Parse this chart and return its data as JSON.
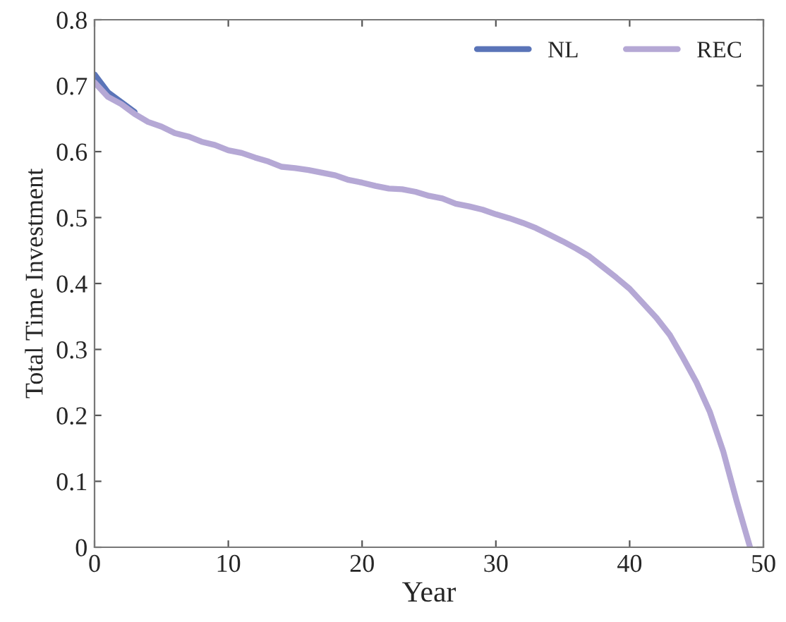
{
  "chart_data": {
    "type": "line",
    "xlabel": "Year",
    "ylabel": "Total Time Investment",
    "x": [
      0,
      1,
      2,
      3,
      4,
      5,
      6,
      7,
      8,
      9,
      10,
      11,
      12,
      13,
      14,
      15,
      16,
      17,
      18,
      19,
      20,
      21,
      22,
      23,
      24,
      25,
      26,
      27,
      28,
      29,
      30,
      31,
      32,
      33,
      34,
      35,
      36,
      37,
      38,
      39,
      40,
      41,
      42,
      43,
      44,
      45,
      46,
      47,
      48,
      49
    ],
    "series": [
      {
        "name": "NL",
        "color": "#5a74b8",
        "values": [
          0.717,
          0.69,
          0.675,
          0.66,
          null,
          null,
          null,
          null,
          null,
          null,
          null,
          null,
          null,
          null,
          null,
          null,
          null,
          null,
          null,
          null,
          null,
          null,
          null,
          null,
          null,
          null,
          null,
          null,
          null,
          null,
          null,
          null,
          null,
          null,
          null,
          null,
          null,
          null,
          null,
          null,
          null,
          null,
          null,
          null,
          null,
          null,
          null,
          null,
          null,
          null
        ]
      },
      {
        "name": "REC",
        "color": "#b5a8d5",
        "values": [
          0.705,
          0.683,
          0.672,
          0.657,
          0.645,
          0.638,
          0.628,
          0.623,
          0.615,
          0.61,
          0.602,
          0.598,
          0.591,
          0.585,
          0.577,
          0.575,
          0.572,
          0.568,
          0.564,
          0.557,
          0.553,
          0.548,
          0.544,
          0.543,
          0.539,
          0.533,
          0.529,
          0.521,
          0.517,
          0.512,
          0.505,
          0.499,
          0.492,
          0.484,
          0.474,
          0.464,
          0.453,
          0.441,
          0.425,
          0.409,
          0.392,
          0.37,
          0.348,
          0.322,
          0.287,
          0.25,
          0.205,
          0.145,
          0.07,
          0.0
        ]
      }
    ],
    "xlim": [
      0,
      50
    ],
    "xticks": [
      0,
      10,
      20,
      30,
      40,
      50
    ],
    "ylim": [
      0,
      0.8
    ],
    "yticks": [
      0,
      0.1,
      0.2,
      0.3,
      0.4,
      0.5,
      0.6,
      0.7,
      0.8
    ],
    "grid": false,
    "legend": "top right",
    "line_style": "solid",
    "marker": "none"
  }
}
